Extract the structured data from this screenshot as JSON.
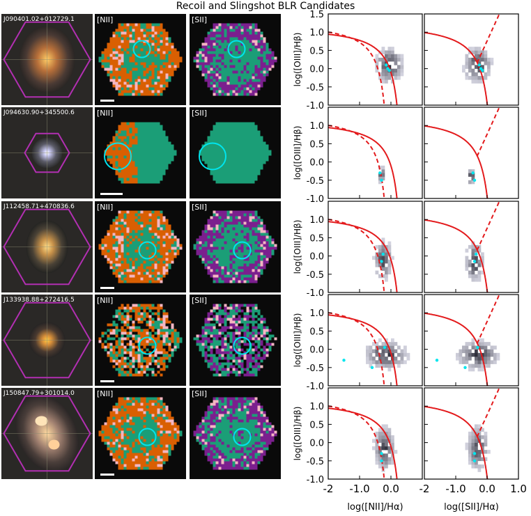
{
  "title": "Recoil and Slingshot BLR Candidates",
  "panel_labels": {
    "nii": "[NII]",
    "sii": "[SII]"
  },
  "colors": {
    "green": "#1b9e77",
    "orange": "#d95f02",
    "purple": "#7b1f8e",
    "pink": "#f4b6c2",
    "cyan": "#00e5ee",
    "hexagon": "#b22fb2",
    "curve": "#e31a1c",
    "sky": "#0a0a0a"
  },
  "chart_data": {
    "type": "heatmap",
    "ylabel": "log([OIII]/Hβ)",
    "xlabels": [
      "log([NII]/Hα)",
      "log([SII]/Hα)"
    ],
    "xlim": [
      -2,
      1
    ],
    "ylim": [
      -1,
      1.5
    ],
    "xticks": [
      "-2",
      "-1.0",
      "0.0",
      "1.0"
    ],
    "yticks": [
      "1.5",
      "1.0",
      "0.5",
      "0.0",
      "-0.5",
      "-1.0"
    ],
    "kewley_line": "maximum starburst curve (solid red)",
    "kauffmann_line": "Kauffmann curve (dashed red, NII diagram)",
    "seyfert_liner_line": "Seyfert/LINER division (dashed red, SII diagram)",
    "galaxies": [
      {
        "name": "J090401.02+012729.1",
        "nii_center": [
          -0.1,
          0.05
        ],
        "sii_center": [
          -0.35,
          0.05
        ],
        "spread": [
          0.4,
          0.45
        ],
        "cyan": [
          [
            -0.15,
            0.1
          ],
          [
            -0.05,
            -0.05
          ],
          [
            -0.1,
            0.0
          ]
        ]
      },
      {
        "name": "J094630.90+345500.6",
        "nii_center": [
          -0.35,
          -0.4
        ],
        "sii_center": [
          -0.55,
          -0.45
        ],
        "spread": [
          0.12,
          0.2
        ],
        "cyan": [
          [
            -0.35,
            -0.3
          ],
          [
            -0.3,
            -0.5
          ]
        ]
      },
      {
        "name": "J112458.71+470836.6",
        "nii_center": [
          -0.3,
          -0.15
        ],
        "sii_center": [
          -0.45,
          -0.2
        ],
        "spread": [
          0.25,
          0.5
        ],
        "cyan": [
          [
            -0.3,
            -0.15
          ],
          [
            -0.25,
            0.05
          ]
        ]
      },
      {
        "name": "J133938.88+272416.5",
        "nii_center": [
          -0.2,
          -0.2
        ],
        "sii_center": [
          -0.35,
          -0.2
        ],
        "spread": [
          0.6,
          0.35
        ],
        "cyan": [
          [
            -1.5,
            -0.3
          ],
          [
            -0.6,
            -0.5
          ],
          [
            -0.2,
            0.05
          ]
        ]
      },
      {
        "name": "J150847.79+301014.0",
        "nii_center": [
          -0.25,
          -0.2
        ],
        "sii_center": [
          -0.35,
          -0.2
        ],
        "spread": [
          0.3,
          0.55
        ],
        "cyan": [
          [
            -0.3,
            -0.5
          ],
          [
            -0.3,
            -0.3
          ]
        ]
      }
    ]
  }
}
